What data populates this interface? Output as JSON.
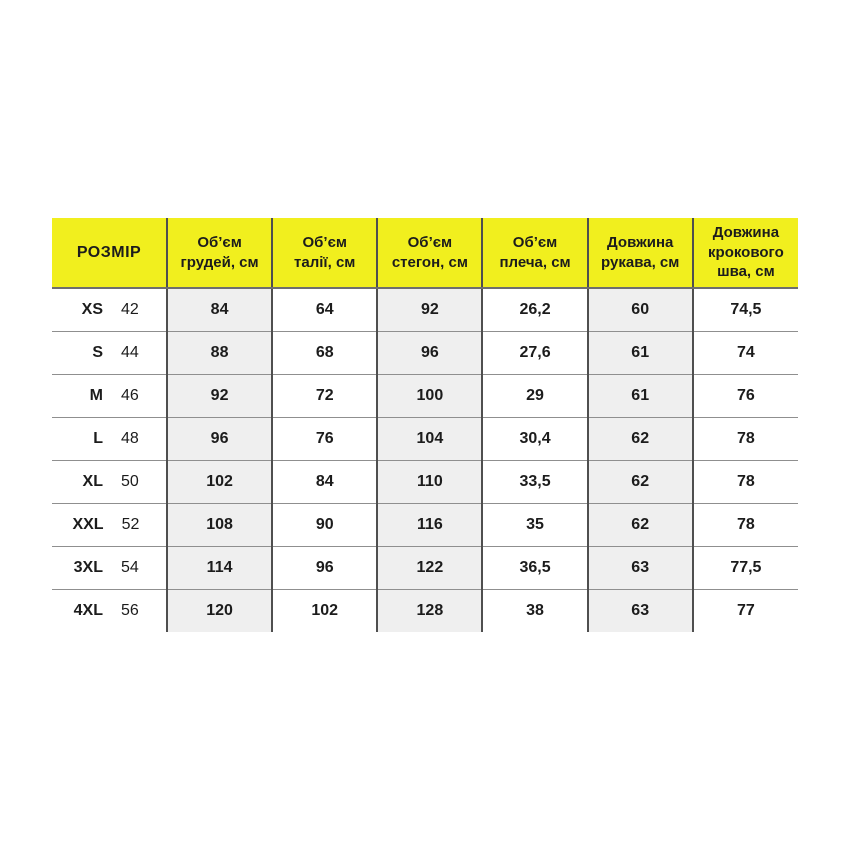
{
  "colors": {
    "header_bg": "#f1ef1e",
    "alt_column_bg": "#efefef",
    "vertical_border": "#4f4f4f",
    "horizontal_border": "#8f8f8f",
    "text": "#1c1c1c",
    "page_bg": "#ffffff"
  },
  "table": {
    "headers": [
      {
        "lines": [
          "РОЗМІР"
        ]
      },
      {
        "lines": [
          "Об’єм",
          "грудей, см"
        ]
      },
      {
        "lines": [
          "Об’єм",
          "талії, см"
        ]
      },
      {
        "lines": [
          "Об’єм",
          "стегон, см"
        ]
      },
      {
        "lines": [
          "Об’єм",
          "плеча, см"
        ]
      },
      {
        "lines": [
          "Довжина",
          "рукава, см"
        ]
      },
      {
        "lines": [
          "Довжина",
          "крокового",
          "шва, см"
        ]
      }
    ],
    "rows": [
      {
        "size": "XS",
        "size_number": "42",
        "values": [
          "84",
          "64",
          "92",
          "26,2",
          "60",
          "74,5"
        ]
      },
      {
        "size": "S",
        "size_number": "44",
        "values": [
          "88",
          "68",
          "96",
          "27,6",
          "61",
          "74"
        ]
      },
      {
        "size": "M",
        "size_number": "46",
        "values": [
          "92",
          "72",
          "100",
          "29",
          "61",
          "76"
        ]
      },
      {
        "size": "L",
        "size_number": "48",
        "values": [
          "96",
          "76",
          "104",
          "30,4",
          "62",
          "78"
        ]
      },
      {
        "size": "XL",
        "size_number": "50",
        "values": [
          "102",
          "84",
          "110",
          "33,5",
          "62",
          "78"
        ]
      },
      {
        "size": "XXL",
        "size_number": "52",
        "values": [
          "108",
          "90",
          "116",
          "35",
          "62",
          "78"
        ]
      },
      {
        "size": "3XL",
        "size_number": "54",
        "values": [
          "114",
          "96",
          "122",
          "36,5",
          "63",
          "77,5"
        ]
      },
      {
        "size": "4XL",
        "size_number": "56",
        "values": [
          "120",
          "102",
          "128",
          "38",
          "63",
          "77"
        ]
      }
    ]
  },
  "chart_data": {
    "type": "table",
    "title": "",
    "columns": [
      "РОЗМІР",
      "Об’єм грудей, см",
      "Об’єм талії, см",
      "Об’єм стегон, см",
      "Об’єм плеча, см",
      "Довжина рукава, см",
      "Довжина крокового шва, см"
    ],
    "rows": [
      [
        "XS 42",
        84,
        64,
        92,
        26.2,
        60,
        74.5
      ],
      [
        "S 44",
        88,
        68,
        96,
        27.6,
        61,
        74
      ],
      [
        "M 46",
        92,
        72,
        100,
        29,
        61,
        76
      ],
      [
        "L 48",
        96,
        76,
        104,
        30.4,
        62,
        78
      ],
      [
        "XL 50",
        102,
        84,
        110,
        33.5,
        62,
        78
      ],
      [
        "XXL 52",
        108,
        90,
        116,
        35,
        62,
        78
      ],
      [
        "3XL 54",
        114,
        96,
        122,
        36.5,
        63,
        77.5
      ],
      [
        "4XL 56",
        120,
        102,
        128,
        38,
        63,
        77
      ]
    ],
    "layout_hints": {
      "header_fill": "yellow",
      "alternating_shaded_value_columns": [
        1,
        3,
        5
      ],
      "grid": "internal lines only, no outer left/right/bottom border"
    }
  }
}
